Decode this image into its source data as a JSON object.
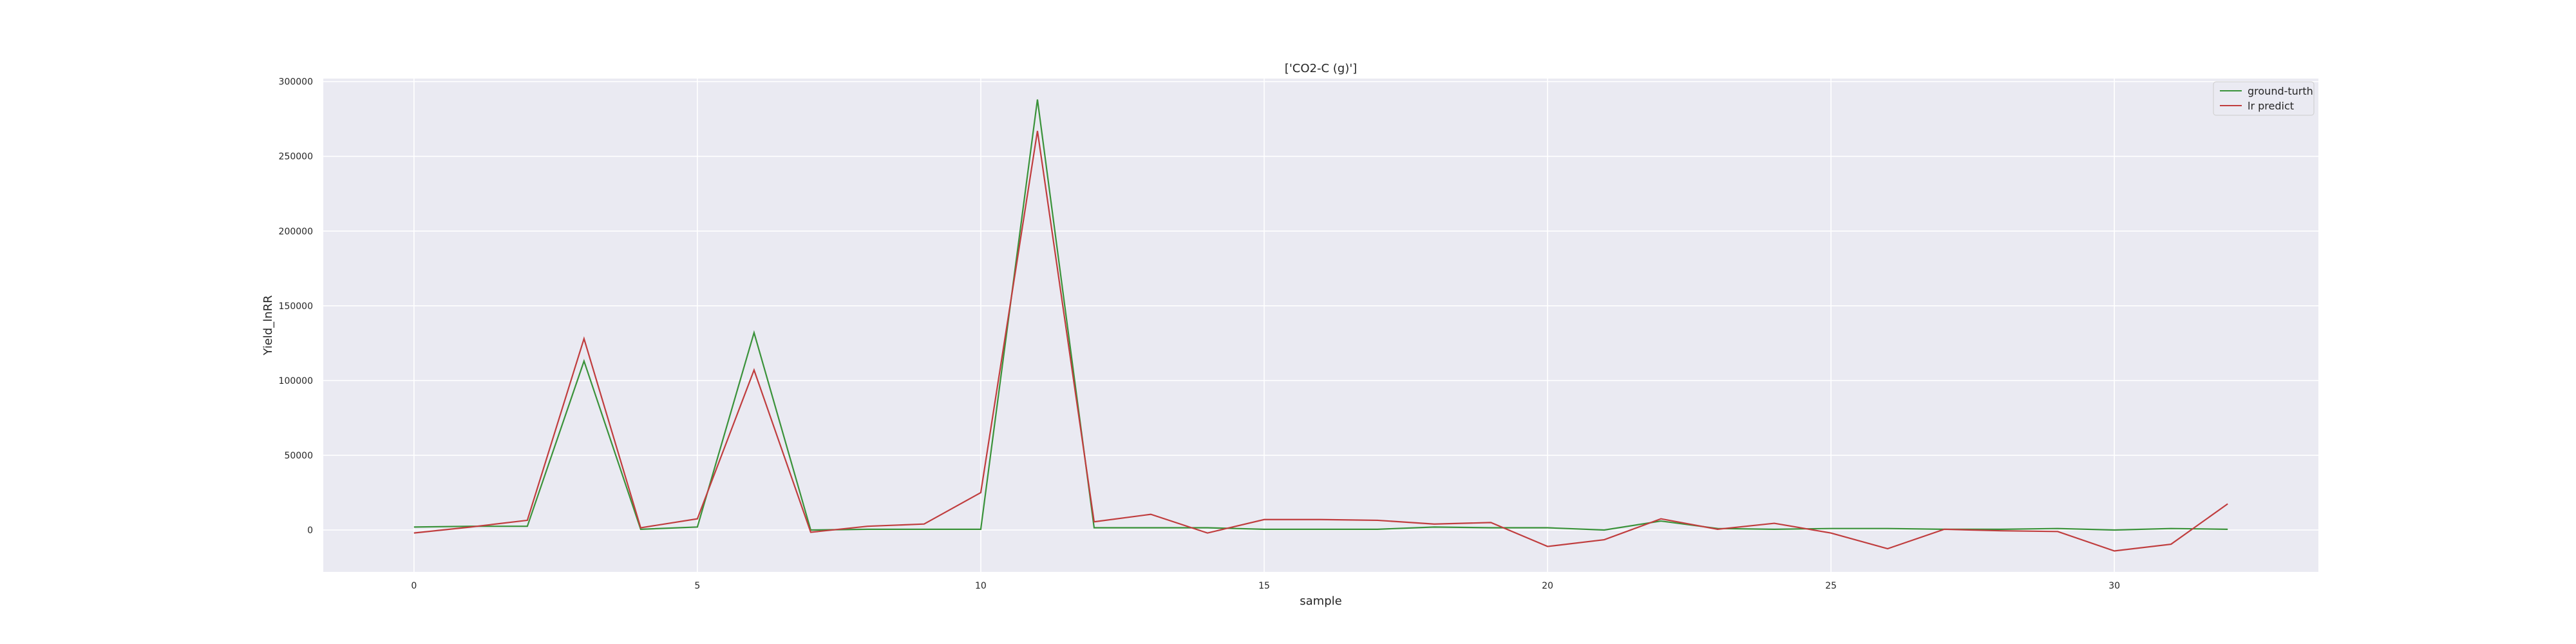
{
  "chart_data": {
    "type": "line",
    "title": "['CO2-C (g)']",
    "xlabel": "sample",
    "ylabel": "Yield_lnRR",
    "xlim": [
      -1.6,
      33.6
    ],
    "ylim": [
      -28000,
      302000
    ],
    "xticks": [
      0,
      5,
      10,
      15,
      20,
      25,
      30
    ],
    "yticks": [
      0,
      50000,
      100000,
      150000,
      200000,
      250000,
      300000
    ],
    "grid": true,
    "legend_position": "top-right",
    "x": [
      0,
      1,
      2,
      3,
      4,
      5,
      6,
      7,
      8,
      9,
      10,
      11,
      12,
      13,
      14,
      15,
      16,
      17,
      18,
      19,
      20,
      21,
      22,
      23,
      24,
      25,
      26,
      27,
      28,
      29,
      30,
      31,
      32
    ],
    "series": [
      {
        "name": "ground-turth",
        "color": "#3a923a",
        "values": [
          2000,
          2500,
          2500,
          113000,
          500,
          2000,
          132000,
          0,
          500,
          500,
          500,
          288000,
          1500,
          1500,
          1500,
          500,
          500,
          500,
          2000,
          1500,
          1500,
          0,
          6000,
          1000,
          500,
          1000,
          1000,
          500,
          500,
          1000,
          0,
          1000,
          500
        ]
      },
      {
        "name": "lr predict",
        "color": "#c03d3e",
        "values": [
          -2000,
          2000,
          6500,
          128000,
          1500,
          7500,
          107000,
          -1500,
          2500,
          4000,
          25000,
          267000,
          5500,
          10500,
          -2000,
          7000,
          7000,
          6500,
          4000,
          5000,
          -11000,
          -6500,
          7500,
          500,
          4500,
          -2000,
          -12500,
          500,
          -500,
          -1000,
          -14000,
          -9500,
          17500
        ]
      }
    ]
  }
}
